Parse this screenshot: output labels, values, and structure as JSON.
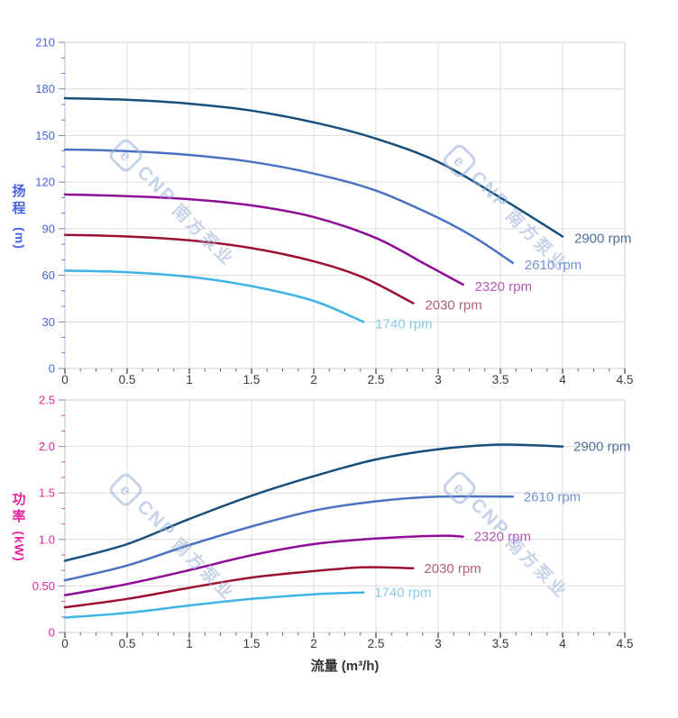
{
  "watermark": {
    "logo": "e",
    "brand": "CNP",
    "brand_cn": "南方泵业"
  },
  "chart_data": [
    {
      "type": "line",
      "title": "",
      "xlabel": "流量 (m³/h)",
      "ylabel": "扬程 (m)",
      "ylabel_lines": [
        "扬",
        "程"
      ],
      "ylabel_unit": "(m)",
      "axis_accent": "#4a63e0",
      "xlim": [
        0,
        4.5
      ],
      "ylim": [
        0,
        210
      ],
      "x_major_step": 0.5,
      "y_major_step": 30,
      "x_tick_labels": [
        "0",
        "0.5",
        "1",
        "1.5",
        "2",
        "2.5",
        "3",
        "3.5",
        "4",
        "4.5"
      ],
      "y_tick_labels": [
        "0",
        "30",
        "60",
        "90",
        "120",
        "150",
        "180",
        "210"
      ],
      "grid": true,
      "legend_position": "inline-right",
      "series": [
        {
          "name": "2900 rpm",
          "color": "#174f7c",
          "label_color": "#4f6e95",
          "points": [
            [
              0,
              174
            ],
            [
              0.5,
              173
            ],
            [
              1,
              170.5
            ],
            [
              1.5,
              166
            ],
            [
              2,
              158.5
            ],
            [
              2.5,
              148
            ],
            [
              3,
              133
            ],
            [
              3.5,
              110
            ],
            [
              4,
              85
            ]
          ]
        },
        {
          "name": "2610 rpm",
          "color": "#4a72c2",
          "label_color": "#7092d5",
          "points": [
            [
              0,
              141
            ],
            [
              0.5,
              140
            ],
            [
              1,
              137.5
            ],
            [
              1.5,
              133
            ],
            [
              2,
              125.5
            ],
            [
              2.5,
              114.5
            ],
            [
              3,
              97
            ],
            [
              3.3,
              84
            ],
            [
              3.6,
              68
            ]
          ]
        },
        {
          "name": "2320 rpm",
          "color": "#8e0d96",
          "label_color": "#b25ab6",
          "points": [
            [
              0,
              112
            ],
            [
              0.5,
              111
            ],
            [
              1,
              109
            ],
            [
              1.5,
              105
            ],
            [
              2,
              97.5
            ],
            [
              2.5,
              84
            ],
            [
              2.9,
              67
            ],
            [
              3.2,
              54
            ]
          ]
        },
        {
          "name": "2030 rpm",
          "color": "#9c1133",
          "label_color": "#b45f76",
          "points": [
            [
              0,
              86
            ],
            [
              0.5,
              85
            ],
            [
              1,
              82.5
            ],
            [
              1.5,
              77.5
            ],
            [
              2,
              69
            ],
            [
              2.4,
              58.5
            ],
            [
              2.8,
              42
            ]
          ]
        },
        {
          "name": "1740 rpm",
          "color": "#3db4e4",
          "label_color": "#88c9ec",
          "points": [
            [
              0,
              63
            ],
            [
              0.5,
              62
            ],
            [
              1,
              59
            ],
            [
              1.5,
              53
            ],
            [
              2,
              43.5
            ],
            [
              2.4,
              30
            ]
          ]
        }
      ]
    },
    {
      "type": "line",
      "title": "",
      "xlabel": "流量 (m³/h)",
      "ylabel": "功率 (kW)",
      "ylabel_lines": [
        "功",
        "率"
      ],
      "ylabel_unit": "(kW)",
      "axis_accent": "#e8259b",
      "xlim": [
        0,
        4.5
      ],
      "ylim": [
        0,
        2.5
      ],
      "x_major_step": 0.5,
      "y_major_step": 0.5,
      "x_tick_labels": [
        "0",
        "0.5",
        "1",
        "1.5",
        "2",
        "2.5",
        "3",
        "3.5",
        "4",
        "4.5"
      ],
      "y_tick_labels": [
        "0",
        "0.50",
        "1.0",
        "1.5",
        "2.0",
        "2.5"
      ],
      "grid": true,
      "legend_position": "inline-right",
      "series": [
        {
          "name": "2900 rpm",
          "color": "#174f7c",
          "label_color": "#4f6e95",
          "points": [
            [
              0,
              0.77
            ],
            [
              0.5,
              0.95
            ],
            [
              1,
              1.22
            ],
            [
              1.5,
              1.47
            ],
            [
              2,
              1.68
            ],
            [
              2.5,
              1.86
            ],
            [
              3,
              1.97
            ],
            [
              3.5,
              2.02
            ],
            [
              4,
              2.0
            ]
          ]
        },
        {
          "name": "2610 rpm",
          "color": "#4a72c2",
          "label_color": "#7092d5",
          "points": [
            [
              0,
              0.56
            ],
            [
              0.5,
              0.72
            ],
            [
              1,
              0.94
            ],
            [
              1.5,
              1.14
            ],
            [
              2,
              1.31
            ],
            [
              2.5,
              1.41
            ],
            [
              3,
              1.46
            ],
            [
              3.6,
              1.46
            ]
          ]
        },
        {
          "name": "2320 rpm",
          "color": "#8e0d96",
          "label_color": "#b25ab6",
          "points": [
            [
              0,
              0.4
            ],
            [
              0.5,
              0.52
            ],
            [
              1,
              0.67
            ],
            [
              1.5,
              0.83
            ],
            [
              2,
              0.95
            ],
            [
              2.5,
              1.01
            ],
            [
              3,
              1.04
            ],
            [
              3.2,
              1.03
            ]
          ]
        },
        {
          "name": "2030 rpm",
          "color": "#9c1133",
          "label_color": "#b45f76",
          "points": [
            [
              0,
              0.27
            ],
            [
              0.5,
              0.36
            ],
            [
              1,
              0.48
            ],
            [
              1.5,
              0.59
            ],
            [
              2,
              0.66
            ],
            [
              2.4,
              0.7
            ],
            [
              2.8,
              0.69
            ]
          ]
        },
        {
          "name": "1740 rpm",
          "color": "#3db4e4",
          "label_color": "#88c9ec",
          "points": [
            [
              0,
              0.16
            ],
            [
              0.5,
              0.21
            ],
            [
              1,
              0.29
            ],
            [
              1.5,
              0.36
            ],
            [
              2,
              0.41
            ],
            [
              2.4,
              0.43
            ]
          ]
        }
      ]
    }
  ]
}
